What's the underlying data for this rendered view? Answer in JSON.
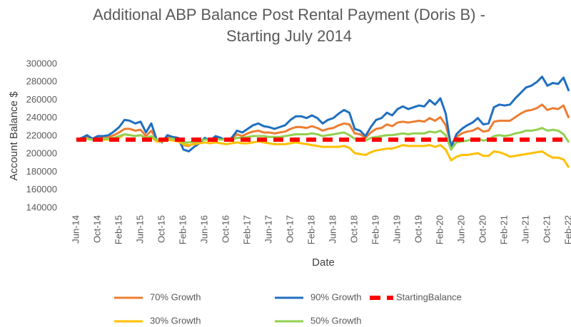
{
  "chart_data": {
    "type": "line",
    "title": [
      "Additional ABP Balance Post Rental Payment (Doris B) -",
      "Starting July 2014"
    ],
    "x_label": "Date",
    "y_label": "Account Balance $",
    "categories": [
      "Jun-14",
      null,
      null,
      null,
      "Oct-14",
      null,
      null,
      null,
      "Feb-15",
      null,
      null,
      null,
      "Jun-15",
      null,
      null,
      null,
      "Oct-15",
      null,
      null,
      null,
      "Feb-16",
      null,
      null,
      null,
      "Jun-16",
      null,
      null,
      null,
      "Oct-16",
      null,
      null,
      null,
      "Feb-17",
      null,
      null,
      null,
      "Jun-17",
      null,
      null,
      null,
      "Oct-17",
      null,
      null,
      null,
      "Feb-18",
      null,
      null,
      null,
      "Jun-18",
      null,
      null,
      null,
      "Oct-18",
      null,
      null,
      null,
      "Feb-19",
      null,
      null,
      null,
      "Jun-19",
      null,
      null,
      null,
      "Oct-19",
      null,
      null,
      null,
      "Feb-20",
      null,
      null,
      null,
      "Jun-20",
      null,
      null,
      null,
      "Oct-20",
      null,
      null,
      null,
      "Feb-21",
      null,
      null,
      null,
      "Jun-21",
      null,
      null,
      null,
      "Oct-21",
      null,
      null,
      null,
      "Feb-22"
    ],
    "ylim": [
      140000,
      300000
    ],
    "yticks": [
      140000,
      160000,
      180000,
      200000,
      220000,
      240000,
      260000,
      280000,
      300000
    ],
    "grid": false,
    "series": [
      {
        "name": "70% Growth",
        "color": "#ED7D31",
        "dashed": false,
        "values": [
          216000,
          217000,
          219000,
          217000,
          218000,
          218000,
          219000,
          221000,
          224000,
          228000,
          228000,
          226000,
          227000,
          220000,
          226000,
          216000,
          214000,
          219000,
          218000,
          217000,
          210000,
          209000,
          212000,
          214000,
          217000,
          215000,
          218000,
          217000,
          215000,
          217000,
          222000,
          220000,
          223000,
          225000,
          226000,
          224000,
          224000,
          223000,
          224000,
          225000,
          228000,
          230000,
          230000,
          229000,
          231000,
          229000,
          226000,
          228000,
          229000,
          232000,
          234000,
          233000,
          223000,
          222000,
          218000,
          224000,
          228000,
          229000,
          233000,
          231000,
          235000,
          236000,
          235000,
          236000,
          237000,
          236000,
          240000,
          237000,
          241000,
          232000,
          211000,
          219000,
          223000,
          225000,
          226000,
          229000,
          225000,
          226000,
          236000,
          237000,
          237000,
          237000,
          241000,
          245000,
          248000,
          249000,
          251000,
          255000,
          249000,
          251000,
          250000,
          254000,
          240000
        ]
      },
      {
        "name": "90% Growth",
        "color": "#1F6FC0",
        "dashed": false,
        "values": [
          216000,
          218000,
          221000,
          217000,
          220000,
          220000,
          221000,
          225000,
          230000,
          238000,
          237000,
          234000,
          236000,
          224000,
          234000,
          216000,
          213000,
          221000,
          219000,
          218000,
          205000,
          203000,
          208000,
          212000,
          218000,
          215000,
          220000,
          218000,
          215000,
          218000,
          226000,
          224000,
          228000,
          232000,
          234000,
          231000,
          230000,
          228000,
          230000,
          232000,
          238000,
          242000,
          242000,
          240000,
          243000,
          240000,
          234000,
          238000,
          240000,
          245000,
          249000,
          246000,
          228000,
          226000,
          220000,
          230000,
          238000,
          240000,
          246000,
          243000,
          250000,
          253000,
          250000,
          252000,
          254000,
          253000,
          260000,
          255000,
          262000,
          245000,
          207000,
          222000,
          228000,
          232000,
          235000,
          240000,
          233000,
          234000,
          252000,
          255000,
          254000,
          255000,
          262000,
          268000,
          274000,
          276000,
          280000,
          286000,
          276000,
          279000,
          278000,
          285000,
          270000
        ]
      },
      {
        "name": "StartingBalance",
        "color": "#FF0000",
        "dashed": true,
        "values": [
          216000,
          216000,
          216000,
          216000,
          216000,
          216000,
          216000,
          216000,
          216000,
          216000,
          216000,
          216000,
          216000,
          216000,
          216000,
          216000,
          216000,
          216000,
          216000,
          216000,
          216000,
          216000,
          216000,
          216000,
          216000,
          216000,
          216000,
          216000,
          216000,
          216000,
          216000,
          216000,
          216000,
          216000,
          216000,
          216000,
          216000,
          216000,
          216000,
          216000,
          216000,
          216000,
          216000,
          216000,
          216000,
          216000,
          216000,
          216000,
          216000,
          216000,
          216000,
          216000,
          216000,
          216000,
          216000,
          216000,
          216000,
          216000,
          216000,
          216000,
          216000,
          216000,
          216000,
          216000,
          216000,
          216000,
          216000,
          216000,
          216000,
          216000,
          216000,
          216000,
          216000,
          216000,
          216000,
          216000,
          216000,
          216000,
          216000,
          216000,
          216000,
          216000,
          216000,
          216000,
          216000,
          216000,
          216000,
          216000,
          216000,
          216000,
          216000,
          216000,
          216000
        ]
      },
      {
        "name": "30% Growth",
        "color": "#FFC000",
        "dashed": false,
        "values": [
          216000,
          216000,
          217000,
          216000,
          216000,
          216000,
          216000,
          217000,
          218000,
          222000,
          221000,
          220000,
          221000,
          217000,
          219000,
          214000,
          214000,
          216000,
          215000,
          214000,
          211000,
          210000,
          211000,
          212000,
          213000,
          212000,
          213000,
          212000,
          211000,
          212000,
          213000,
          212000,
          212000,
          213000,
          214000,
          213000,
          212000,
          211000,
          211000,
          211000,
          212000,
          213000,
          212000,
          211000,
          210000,
          209000,
          208000,
          208000,
          208000,
          208000,
          209000,
          207000,
          201000,
          200000,
          199000,
          202000,
          204000,
          205000,
          206000,
          206000,
          208000,
          210000,
          209000,
          209000,
          209000,
          209000,
          210000,
          208000,
          210000,
          205000,
          193000,
          197000,
          199000,
          199000,
          200000,
          201000,
          198000,
          198000,
          203000,
          202000,
          200000,
          197000,
          198000,
          199000,
          200000,
          201000,
          202000,
          203000,
          199000,
          196000,
          196000,
          194000,
          185000
        ]
      },
      {
        "name": "50% Growth",
        "color": "#92D050",
        "dashed": false,
        "values": [
          216000,
          216000,
          217000,
          216000,
          217000,
          217000,
          217000,
          218000,
          220000,
          222000,
          221000,
          220000,
          221000,
          218000,
          220000,
          216000,
          215000,
          217000,
          217000,
          216000,
          213000,
          213000,
          214000,
          215000,
          216000,
          216000,
          217000,
          216000,
          216000,
          216000,
          218000,
          218000,
          219000,
          220000,
          220000,
          220000,
          219000,
          219000,
          219000,
          220000,
          221000,
          222000,
          222000,
          222000,
          223000,
          222000,
          220000,
          221000,
          222000,
          223000,
          224000,
          221000,
          217000,
          216000,
          215000,
          218000,
          219000,
          220000,
          221000,
          221000,
          222000,
          223000,
          222000,
          223000,
          223000,
          223000,
          225000,
          224000,
          226000,
          221000,
          205000,
          213000,
          214000,
          215000,
          216000,
          217000,
          215000,
          216000,
          220000,
          221000,
          220000,
          221000,
          223000,
          224000,
          226000,
          226000,
          227000,
          229000,
          226000,
          227000,
          226000,
          222000,
          213000
        ]
      }
    ]
  }
}
